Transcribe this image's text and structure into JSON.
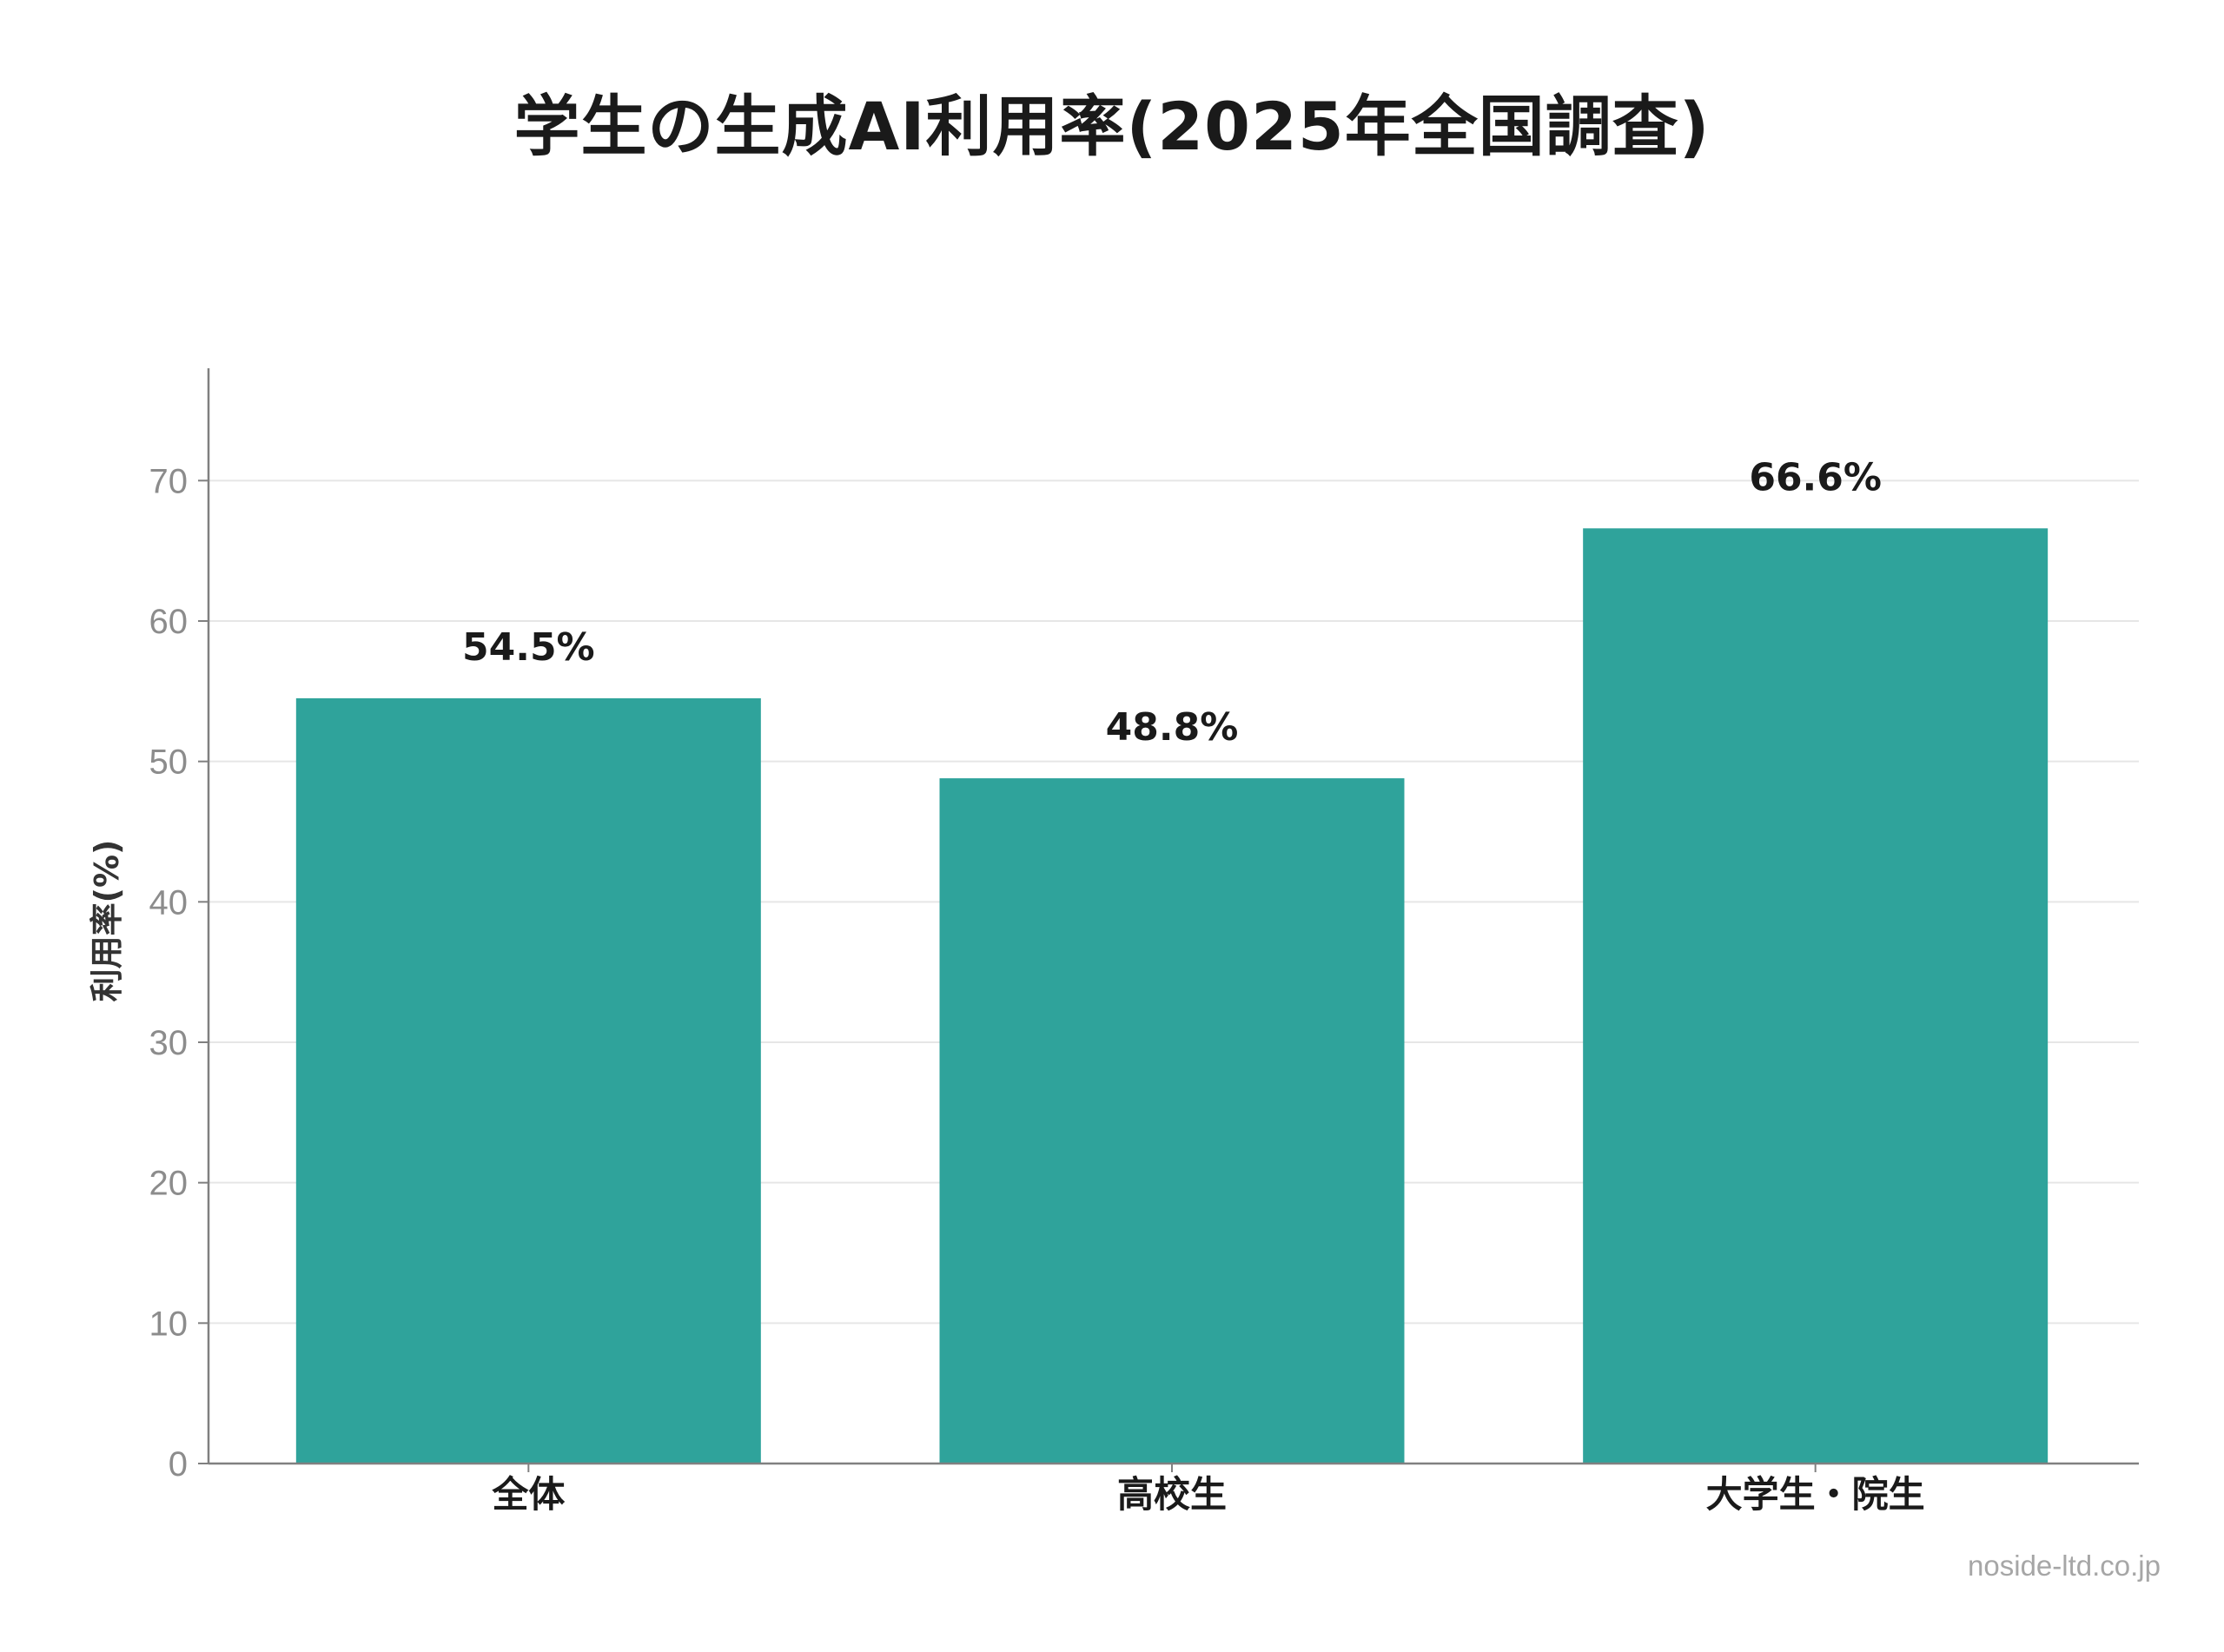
{
  "chart_data": {
    "type": "bar",
    "title": "学生の生成AI利用率(2025年全国調査)",
    "ylabel": "利用率(%)",
    "xlabel": "",
    "categories": [
      "全体",
      "高校生",
      "大学生・院生"
    ],
    "values": [
      54.5,
      48.8,
      66.6
    ],
    "value_labels": [
      "54.5%",
      "48.8%",
      "66.6%"
    ],
    "ylim": [
      0,
      78
    ],
    "yticks": [
      0,
      10,
      20,
      30,
      40,
      50,
      60,
      70
    ],
    "grid": true,
    "legend": "none",
    "bar_color": "#2fa39b"
  },
  "footer": {
    "credit": "noside-ltd.co.jp"
  },
  "colors": {
    "bar": "#2fa39b",
    "grid": "#e6e6e6",
    "axis": "#808080",
    "tick_label": "#8c8c8c",
    "text": "#1a1a1a"
  }
}
